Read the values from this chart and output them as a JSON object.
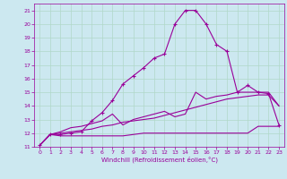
{
  "title": "",
  "xlabel": "Windchill (Refroidissement éolien,°C)",
  "ylabel": "",
  "bg_color": "#cce8f0",
  "grid_color": "#b0d8c8",
  "line_color": "#990099",
  "xlim": [
    -0.5,
    23.5
  ],
  "ylim": [
    11,
    21.5
  ],
  "xticks": [
    0,
    1,
    2,
    3,
    4,
    5,
    6,
    7,
    8,
    9,
    10,
    11,
    12,
    13,
    14,
    15,
    16,
    17,
    18,
    19,
    20,
    21,
    22,
    23
  ],
  "yticks": [
    11,
    12,
    13,
    14,
    15,
    16,
    17,
    18,
    19,
    20,
    21
  ],
  "lines": [
    {
      "x": [
        0,
        1,
        2,
        3,
        4,
        5,
        6,
        7,
        8,
        9,
        10,
        11,
        12,
        13,
        14,
        15,
        16,
        17,
        18,
        19,
        20,
        21,
        22,
        23
      ],
      "y": [
        11.1,
        11.9,
        11.8,
        11.8,
        11.8,
        11.8,
        11.8,
        11.8,
        11.8,
        11.9,
        12.0,
        12.0,
        12.0,
        12.0,
        12.0,
        12.0,
        12.0,
        12.0,
        12.0,
        12.0,
        12.0,
        12.5,
        12.5,
        12.5
      ],
      "marker": false,
      "lw": 0.8
    },
    {
      "x": [
        0,
        1,
        2,
        3,
        4,
        5,
        6,
        7,
        8,
        9,
        10,
        11,
        12,
        13,
        14,
        15,
        16,
        17,
        18,
        19,
        20,
        21,
        22,
        23
      ],
      "y": [
        11.1,
        11.9,
        12.0,
        12.1,
        12.2,
        12.3,
        12.5,
        12.6,
        12.8,
        12.9,
        13.0,
        13.1,
        13.3,
        13.5,
        13.7,
        13.9,
        14.1,
        14.3,
        14.5,
        14.6,
        14.7,
        14.8,
        14.8,
        14.0
      ],
      "marker": false,
      "lw": 0.8
    },
    {
      "x": [
        0,
        1,
        2,
        3,
        4,
        5,
        6,
        7,
        8,
        9,
        10,
        11,
        12,
        13,
        14,
        15,
        16,
        17,
        18,
        19,
        20,
        21,
        22,
        23
      ],
      "y": [
        11.1,
        11.9,
        12.1,
        12.4,
        12.5,
        12.7,
        12.9,
        13.4,
        12.6,
        13.0,
        13.2,
        13.4,
        13.6,
        13.2,
        13.4,
        15.0,
        14.5,
        14.7,
        14.8,
        15.0,
        15.0,
        15.0,
        15.0,
        14.0
      ],
      "marker": false,
      "lw": 0.8
    },
    {
      "x": [
        0,
        1,
        2,
        3,
        4,
        5,
        6,
        7,
        8,
        9,
        10,
        11,
        12,
        13,
        14,
        15,
        16,
        17,
        18,
        19,
        20,
        21,
        22,
        23
      ],
      "y": [
        11.1,
        11.9,
        11.9,
        12.0,
        12.1,
        12.9,
        13.5,
        14.4,
        15.6,
        16.2,
        16.8,
        17.5,
        17.8,
        20.0,
        21.0,
        21.0,
        20.0,
        18.5,
        18.0,
        15.0,
        15.5,
        15.0,
        14.9,
        12.6
      ],
      "marker": true,
      "lw": 0.8
    }
  ]
}
